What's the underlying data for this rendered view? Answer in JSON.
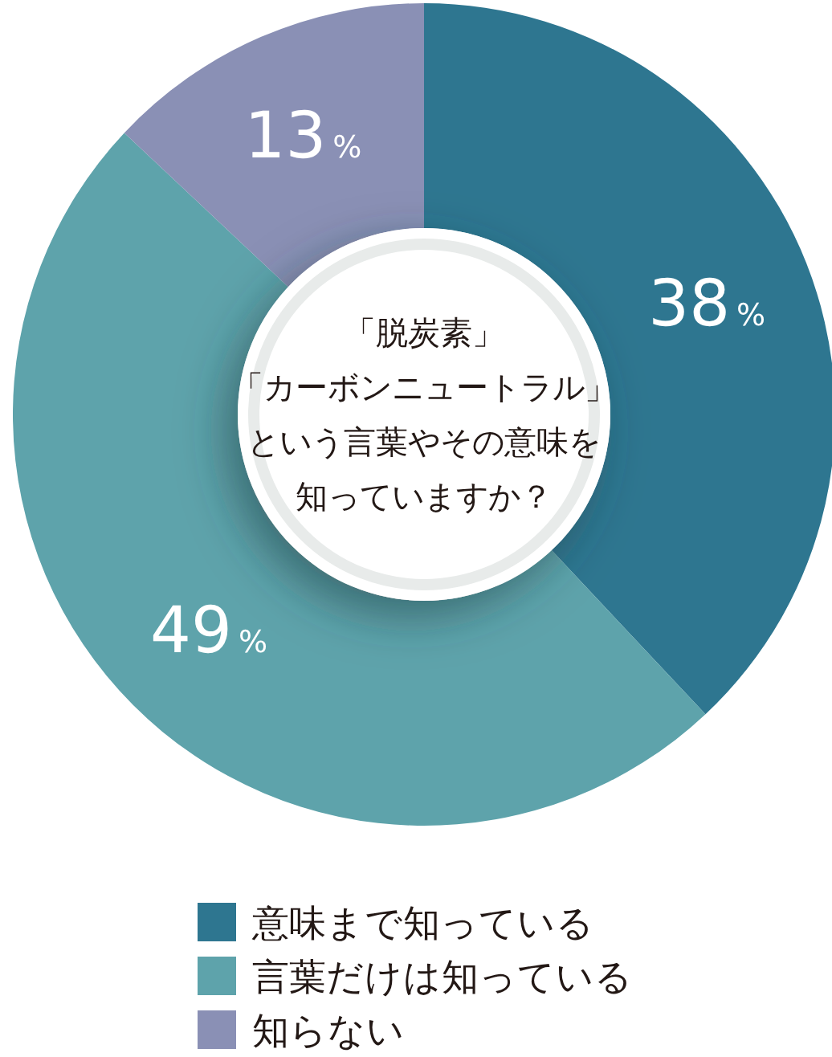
{
  "chart_data": {
    "type": "donut",
    "title": "「脱炭素」「カーボンニュートラル」という言葉やその意味を知っていますか？",
    "categories": [
      "意味まで知っている",
      "言葉だけは知っている",
      "知らない"
    ],
    "values": [
      38,
      49,
      13
    ],
    "colors": [
      "#2e7690",
      "#5ea3ab",
      "#8a90b5"
    ],
    "value_labels": [
      "38%",
      "49%",
      "13%"
    ],
    "legend": "bottom"
  }
}
